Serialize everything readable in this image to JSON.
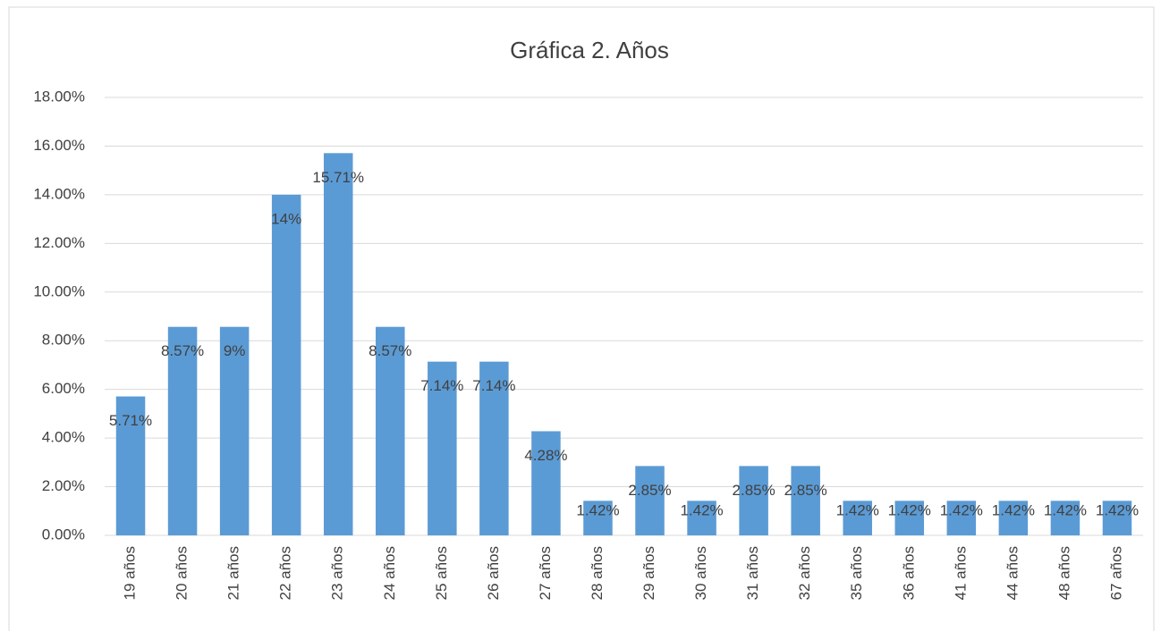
{
  "chart_data": {
    "type": "bar",
    "title": "Gráfica 2. Años",
    "categories": [
      "19 años",
      "20 años",
      "21 años",
      "22 años",
      "23 años",
      "24 años",
      "25 años",
      "26 años",
      "27 años",
      "28 años",
      "29 años",
      "30 años",
      "31 años",
      "32 años",
      "35 años",
      "36 años",
      "41 años",
      "44 años",
      "48 años",
      "67 años"
    ],
    "values": [
      5.71,
      8.57,
      8.57,
      14,
      15.71,
      8.57,
      7.14,
      7.14,
      4.28,
      1.42,
      2.85,
      1.42,
      2.85,
      2.85,
      1.42,
      1.42,
      1.42,
      1.42,
      1.42,
      1.42
    ],
    "value_labels": [
      "5.71%",
      "8.57%",
      "9%",
      "14%",
      "15.71%",
      "8.57%",
      "7.14%",
      "7.14%",
      "4.28%",
      "1.42%",
      "2.85%",
      "1.42%",
      "2.85%",
      "2.85%",
      "1.42%",
      "1.42%",
      "1.42%",
      "1.42%",
      "1.42%",
      "1.42%"
    ],
    "color": "#5b9bd5",
    "ylim": [
      0,
      18
    ],
    "yticks": [
      {
        "value": 0,
        "label": "0.00%"
      },
      {
        "value": 2,
        "label": "2.00%"
      },
      {
        "value": 4,
        "label": "4.00%"
      },
      {
        "value": 6,
        "label": "6.00%"
      },
      {
        "value": 8,
        "label": "8.00%"
      },
      {
        "value": 10,
        "label": "10.00%"
      },
      {
        "value": 12,
        "label": "12.00%"
      },
      {
        "value": 14,
        "label": "14.00%"
      },
      {
        "value": 16,
        "label": "16.00%"
      },
      {
        "value": 18,
        "label": "18.00%"
      }
    ],
    "grid": true
  }
}
